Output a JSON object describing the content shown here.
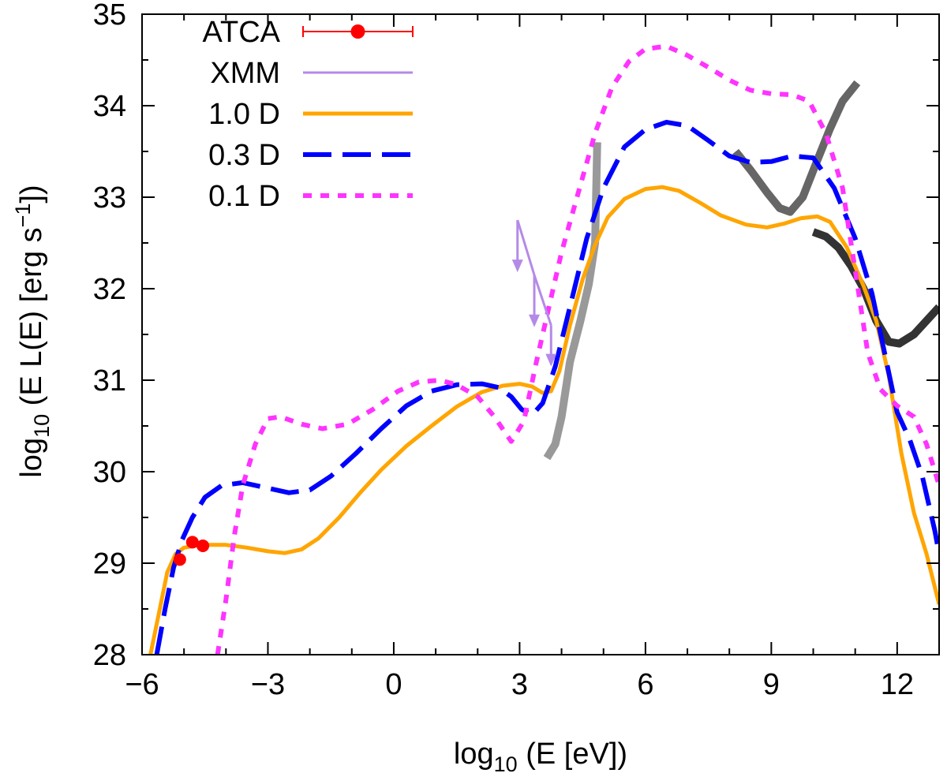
{
  "chart_data": {
    "type": "line",
    "title": "",
    "xlabel": "log10 (E [eV])",
    "ylabel": "log10 (E L(E) [erg s−1])",
    "xlim": [
      -6,
      13
    ],
    "ylim": [
      28,
      35
    ],
    "x_ticks": [
      -6,
      -3,
      0,
      3,
      6,
      9,
      12
    ],
    "x_tick_labels": [
      "−6",
      "−3",
      "0",
      "3",
      "6",
      "9",
      "12"
    ],
    "y_ticks": [
      28,
      29,
      30,
      31,
      32,
      33,
      34,
      35
    ],
    "y_tick_labels": [
      "28",
      "29",
      "30",
      "31",
      "32",
      "33",
      "34",
      "35"
    ],
    "legend_position": "top-left",
    "series": [
      {
        "name": "ATCA",
        "legend_label": "ATCA",
        "style": "points-errorbar",
        "color": "#ff0000",
        "points": [
          [
            -5.1,
            29.04
          ],
          [
            -4.8,
            29.23
          ],
          [
            -4.55,
            29.19
          ]
        ]
      },
      {
        "name": "XMM",
        "legend_label": "XMM",
        "style": "upper-limit-arrows",
        "color": "#b48ae8",
        "points": [
          [
            2.95,
            32.75
          ],
          [
            3.35,
            32.15
          ],
          [
            3.75,
            31.6
          ]
        ],
        "arrow_tips": [
          [
            2.95,
            32.18
          ],
          [
            3.35,
            31.58
          ],
          [
            3.75,
            31.15
          ]
        ]
      },
      {
        "name": "1.0 D",
        "legend_label": "1.0 D",
        "style": "solid",
        "color": "#ffa500",
        "points": [
          [
            -5.8,
            28
          ],
          [
            -5.6,
            28.45
          ],
          [
            -5.4,
            28.9
          ],
          [
            -5.2,
            29.1
          ],
          [
            -5,
            29.17
          ],
          [
            -4.6,
            29.2
          ],
          [
            -4,
            29.2
          ],
          [
            -3.5,
            29.17
          ],
          [
            -3,
            29.13
          ],
          [
            -2.6,
            29.11
          ],
          [
            -2.2,
            29.15
          ],
          [
            -1.8,
            29.27
          ],
          [
            -1.3,
            29.5
          ],
          [
            -0.8,
            29.77
          ],
          [
            -0.3,
            30.02
          ],
          [
            0.3,
            30.28
          ],
          [
            0.9,
            30.5
          ],
          [
            1.5,
            30.71
          ],
          [
            2.1,
            30.87
          ],
          [
            2.6,
            30.94
          ],
          [
            3,
            30.96
          ],
          [
            3.3,
            30.93
          ],
          [
            3.55,
            30.86
          ],
          [
            3.75,
            30.88
          ],
          [
            3.95,
            31.1
          ],
          [
            4.2,
            31.6
          ],
          [
            4.5,
            32.1
          ],
          [
            4.8,
            32.48
          ],
          [
            5.1,
            32.78
          ],
          [
            5.5,
            32.98
          ],
          [
            6,
            33.09
          ],
          [
            6.4,
            33.11
          ],
          [
            6.8,
            33.07
          ],
          [
            7.3,
            32.94
          ],
          [
            7.8,
            32.8
          ],
          [
            8.4,
            32.7
          ],
          [
            8.9,
            32.67
          ],
          [
            9.3,
            32.71
          ],
          [
            9.7,
            32.77
          ],
          [
            10.1,
            32.79
          ],
          [
            10.4,
            32.73
          ],
          [
            10.8,
            32.45
          ],
          [
            11.2,
            32.03
          ],
          [
            11.5,
            31.65
          ],
          [
            11.8,
            31.05
          ],
          [
            12.1,
            30.2
          ],
          [
            12.4,
            29.55
          ],
          [
            12.7,
            29.1
          ],
          [
            13,
            28.55
          ]
        ]
      },
      {
        "name": "0.3 D",
        "legend_label": "0.3 D",
        "style": "dashed",
        "color": "#0000ff",
        "points": [
          [
            -5.65,
            28
          ],
          [
            -5.45,
            28.5
          ],
          [
            -5.25,
            28.95
          ],
          [
            -5.05,
            29.25
          ],
          [
            -4.8,
            29.5
          ],
          [
            -4.5,
            29.72
          ],
          [
            -4.1,
            29.85
          ],
          [
            -3.6,
            29.88
          ],
          [
            -3,
            29.82
          ],
          [
            -2.5,
            29.77
          ],
          [
            -2,
            29.8
          ],
          [
            -1.5,
            29.95
          ],
          [
            -0.9,
            30.2
          ],
          [
            -0.3,
            30.47
          ],
          [
            0.3,
            30.72
          ],
          [
            0.9,
            30.88
          ],
          [
            1.5,
            30.95
          ],
          [
            2.1,
            30.96
          ],
          [
            2.5,
            30.92
          ],
          [
            2.8,
            30.82
          ],
          [
            3.05,
            30.68
          ],
          [
            3.3,
            30.62
          ],
          [
            3.55,
            30.75
          ],
          [
            3.85,
            31.15
          ],
          [
            4.2,
            31.8
          ],
          [
            4.6,
            32.55
          ],
          [
            5,
            33.1
          ],
          [
            5.5,
            33.55
          ],
          [
            6,
            33.74
          ],
          [
            6.5,
            33.82
          ],
          [
            7,
            33.78
          ],
          [
            7.5,
            33.62
          ],
          [
            8,
            33.45
          ],
          [
            8.5,
            33.38
          ],
          [
            9,
            33.39
          ],
          [
            9.5,
            33.45
          ],
          [
            10,
            33.43
          ],
          [
            10.5,
            33.1
          ],
          [
            11,
            32.55
          ],
          [
            11.4,
            31.95
          ],
          [
            11.7,
            31.3
          ],
          [
            12,
            30.65
          ],
          [
            12.3,
            30.35
          ],
          [
            12.6,
            29.95
          ],
          [
            12.9,
            29.35
          ],
          [
            13,
            29.1
          ]
        ]
      },
      {
        "name": "0.1 D",
        "legend_label": "0.1 D",
        "style": "dotted",
        "color": "#ff33ff",
        "points": [
          [
            -4.2,
            28
          ],
          [
            -4,
            28.6
          ],
          [
            -3.8,
            29.3
          ],
          [
            -3.6,
            29.85
          ],
          [
            -3.3,
            30.3
          ],
          [
            -3,
            30.58
          ],
          [
            -2.7,
            30.6
          ],
          [
            -2.2,
            30.52
          ],
          [
            -1.7,
            30.47
          ],
          [
            -1.1,
            30.52
          ],
          [
            -0.5,
            30.68
          ],
          [
            0.1,
            30.88
          ],
          [
            0.6,
            30.98
          ],
          [
            1.1,
            31
          ],
          [
            1.5,
            30.95
          ],
          [
            2,
            30.82
          ],
          [
            2.4,
            30.6
          ],
          [
            2.8,
            30.33
          ],
          [
            3.1,
            30.55
          ],
          [
            3.4,
            31.2
          ],
          [
            3.7,
            31.8
          ],
          [
            4,
            32.4
          ],
          [
            4.4,
            33.05
          ],
          [
            4.8,
            33.7
          ],
          [
            5.2,
            34.2
          ],
          [
            5.6,
            34.48
          ],
          [
            6,
            34.62
          ],
          [
            6.5,
            34.65
          ],
          [
            7,
            34.55
          ],
          [
            7.5,
            34.42
          ],
          [
            8,
            34.28
          ],
          [
            8.5,
            34.17
          ],
          [
            9,
            34.13
          ],
          [
            9.5,
            34.12
          ],
          [
            9.9,
            34.05
          ],
          [
            10.3,
            33.7
          ],
          [
            10.7,
            33.1
          ],
          [
            11,
            32.2
          ],
          [
            11.3,
            31.3
          ],
          [
            11.6,
            30.9
          ],
          [
            12,
            30.72
          ],
          [
            12.4,
            30.6
          ],
          [
            12.7,
            30.3
          ],
          [
            13,
            29.85
          ]
        ]
      },
      {
        "name": "data-gray-1",
        "style": "thick-solid",
        "color": "#999999",
        "points": [
          [
            3.65,
            30.15
          ],
          [
            3.85,
            30.3
          ],
          [
            4,
            30.6
          ],
          [
            4.2,
            31.2
          ],
          [
            4.45,
            31.65
          ],
          [
            4.65,
            32.05
          ],
          [
            4.8,
            32.5
          ],
          [
            4.85,
            33.6
          ]
        ]
      },
      {
        "name": "data-gray-2",
        "style": "thick-solid",
        "color": "#666666",
        "points": [
          [
            8.15,
            33.5
          ],
          [
            8.5,
            33.3
          ],
          [
            8.9,
            33.05
          ],
          [
            9.2,
            32.88
          ],
          [
            9.45,
            32.84
          ],
          [
            9.75,
            33
          ],
          [
            10.05,
            33.35
          ],
          [
            10.4,
            33.75
          ],
          [
            10.7,
            34.05
          ],
          [
            11.05,
            34.25
          ]
        ]
      },
      {
        "name": "data-gray-3",
        "style": "thick-solid",
        "color": "#333333",
        "points": [
          [
            10,
            32.62
          ],
          [
            10.3,
            32.57
          ],
          [
            10.6,
            32.45
          ],
          [
            10.9,
            32.25
          ],
          [
            11.2,
            32
          ],
          [
            11.5,
            31.65
          ],
          [
            11.8,
            31.42
          ],
          [
            12.05,
            31.4
          ],
          [
            12.4,
            31.5
          ],
          [
            12.8,
            31.7
          ],
          [
            13,
            31.8
          ]
        ]
      }
    ]
  }
}
